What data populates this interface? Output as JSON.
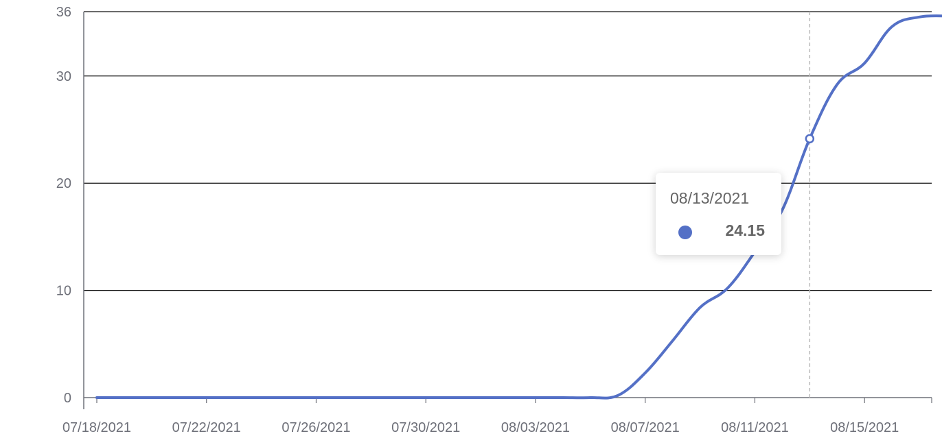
{
  "chart_data": {
    "type": "line",
    "x_ticks": [
      "07/18/2021",
      "07/22/2021",
      "07/26/2021",
      "07/30/2021",
      "08/03/2021",
      "08/07/2021",
      "08/11/2021",
      "08/15/2021"
    ],
    "y_ticks": [
      "0",
      "10",
      "20",
      "30",
      "36"
    ],
    "ylim": [
      0,
      36
    ],
    "xlim": [
      "07/18/2021",
      "08/18/2021"
    ],
    "grid": true,
    "series": [
      {
        "color": "#5470c6",
        "x": [
          "07/18/2021",
          "07/19/2021",
          "07/20/2021",
          "07/21/2021",
          "07/22/2021",
          "07/23/2021",
          "07/24/2021",
          "07/25/2021",
          "07/26/2021",
          "07/27/2021",
          "07/28/2021",
          "07/29/2021",
          "07/30/2021",
          "07/31/2021",
          "08/01/2021",
          "08/02/2021",
          "08/03/2021",
          "08/04/2021",
          "08/05/2021",
          "08/06/2021",
          "08/07/2021",
          "08/08/2021",
          "08/09/2021",
          "08/10/2021",
          "08/11/2021",
          "08/12/2021",
          "08/13/2021",
          "08/14/2021",
          "08/15/2021",
          "08/16/2021",
          "08/17/2021",
          "08/18/2021"
        ],
        "values": [
          0,
          0,
          0,
          0,
          0,
          0,
          0,
          0,
          0,
          0,
          0,
          0,
          0,
          0,
          0,
          0,
          0,
          0,
          0,
          0.2,
          2.3,
          5.3,
          8.4,
          10.2,
          13.6,
          17.5,
          24.15,
          29.2,
          31.2,
          34.6,
          35.5,
          35.6
        ]
      }
    ],
    "tooltip": {
      "date": "08/13/2021",
      "value": "24.15"
    }
  }
}
